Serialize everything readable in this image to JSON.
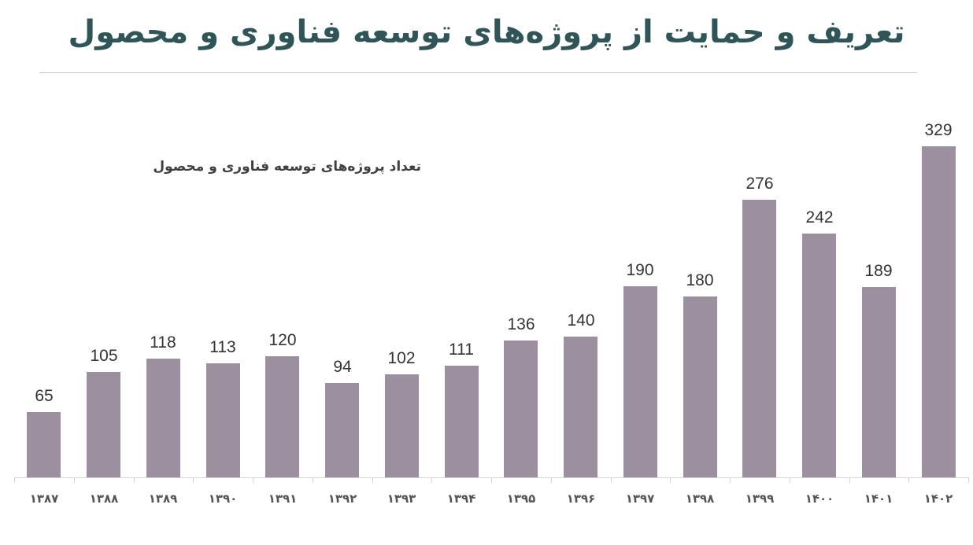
{
  "header": {
    "title": "تعریف و حمایت از پروژه‌های توسعه فناوری و محصول"
  },
  "chart": {
    "title": "تعداد پروژه‌های توسعه فناوری و محصول",
    "bar_color": "#9c8fa0",
    "title_color": "#2f5558"
  },
  "chart_data": {
    "type": "bar",
    "title": "تعداد پروژه‌های توسعه فناوری و محصول",
    "xlabel": "",
    "ylabel": "",
    "categories": [
      "۱۳۸۷",
      "۱۳۸۸",
      "۱۳۸۹",
      "۱۳۹۰",
      "۱۳۹۱",
      "۱۳۹۲",
      "۱۳۹۳",
      "۱۳۹۴",
      "۱۳۹۵",
      "۱۳۹۶",
      "۱۳۹۷",
      "۱۳۹۸",
      "۱۳۹۹",
      "۱۴۰۰",
      "۱۴۰۱",
      "۱۴۰۲"
    ],
    "values": [
      65,
      105,
      118,
      113,
      120,
      94,
      102,
      111,
      136,
      140,
      190,
      180,
      276,
      242,
      189,
      329
    ],
    "value_labels": [
      "65",
      "105",
      "118",
      "113",
      "120",
      "94",
      "102",
      "111",
      "136",
      "140",
      "190",
      "180",
      "276",
      "242",
      "189",
      "329"
    ],
    "ylim": [
      0,
      329
    ],
    "grid": false,
    "legend": "none",
    "data_labels": true
  }
}
